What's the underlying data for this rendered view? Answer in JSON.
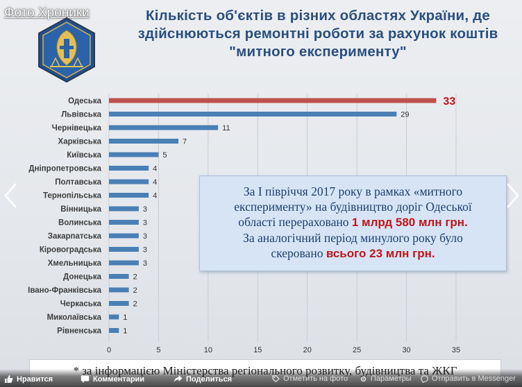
{
  "overlay": {
    "photo_tag": "Фото Хроники"
  },
  "slide": {
    "title_lines": [
      "Кількість об'єктів в різних областях України, де",
      "здійснюються ремонтні роботи за рахунок коштів",
      "\"митного експерименту\""
    ],
    "info_box": {
      "line1": "За І півріччя 2017 року в рамках «митного",
      "line2": "експерименту» на будівництво доріг Одеської",
      "line3_text": "області перераховано",
      "line3_highlight": "1 млрд 580 млн грн.",
      "line4": "За аналогічний період минулого року було",
      "line5_text": "скеровано",
      "line5_highlight": "всього 23 млн грн."
    },
    "footnote": "* за інформацією Міністерства регіонального розвитку, будівництва та ЖКГ"
  },
  "chart_data": {
    "type": "bar",
    "orientation": "horizontal",
    "categories": [
      "Одеська",
      "Львівська",
      "Чернівецька",
      "Харківська",
      "Київська",
      "Дніпропетровська",
      "Полтавська",
      "Тернопільська",
      "Вінницька",
      "Волинська",
      "Закарпатська",
      "Кіровоградська",
      "Хмельницька",
      "Донецька",
      "Івано-Франківська",
      "Черкаська",
      "Миколаївська",
      "Рівненська"
    ],
    "values": [
      33,
      29,
      11,
      7,
      5,
      4,
      4,
      4,
      3,
      3,
      3,
      3,
      3,
      2,
      2,
      2,
      1,
      1
    ],
    "value_labels": [
      "33",
      "29",
      "11",
      "7",
      "5",
      "4",
      "4",
      "4",
      "3",
      "3",
      "3",
      "3",
      "3",
      "2",
      "2",
      "2",
      "1",
      "1"
    ],
    "xlim": [
      0,
      35
    ],
    "xticks": [
      0,
      5,
      10,
      15,
      20,
      25,
      30,
      35
    ],
    "grid": true,
    "colors": {
      "bar": "#4a7fb5",
      "highlight_bar": "#c0504d",
      "highlight_label": "#c0141b"
    },
    "highlight_index": 0
  },
  "facebook_bar": {
    "like": "Нравится",
    "comment": "Комментарии",
    "share": "Поделиться",
    "mark": "Отметить на фото",
    "params": "Параметры",
    "send": "Отправить в Messenger",
    "icons": [
      "like-icon",
      "comment-icon",
      "share-icon",
      "tag-icon",
      "options-icon",
      "messenger-icon"
    ]
  }
}
